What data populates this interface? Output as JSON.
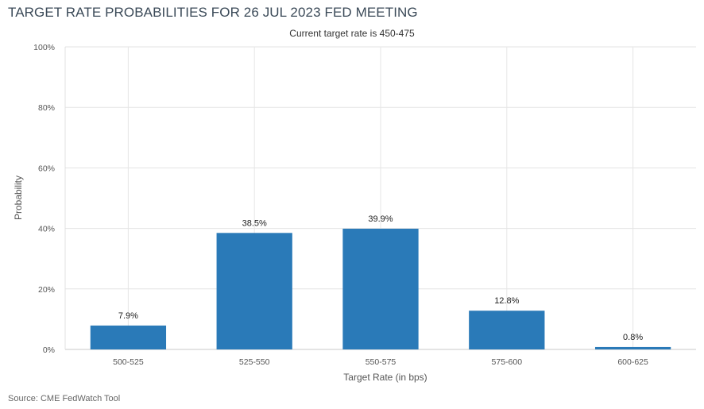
{
  "chart_data": {
    "type": "bar",
    "title": "TARGET RATE PROBABILITIES FOR 26 JUL 2023 FED MEETING",
    "subtitle": "Current target rate is 450-475",
    "xlabel": "Target Rate (in bps)",
    "ylabel": "Probability",
    "categories": [
      "500-525",
      "525-550",
      "550-575",
      "575-600",
      "600-625"
    ],
    "values": [
      7.9,
      38.5,
      39.9,
      12.8,
      0.8
    ],
    "data_labels": [
      "7.9%",
      "38.5%",
      "39.9%",
      "12.8%",
      "0.8%"
    ],
    "ylim": [
      0,
      100
    ],
    "yticks": [
      0,
      20,
      40,
      60,
      80,
      100
    ],
    "ytick_labels": [
      "0%",
      "20%",
      "40%",
      "60%",
      "80%",
      "100%"
    ],
    "grid": true,
    "bar_color": "#2a7ab8",
    "source": "Source: CME FedWatch Tool"
  }
}
